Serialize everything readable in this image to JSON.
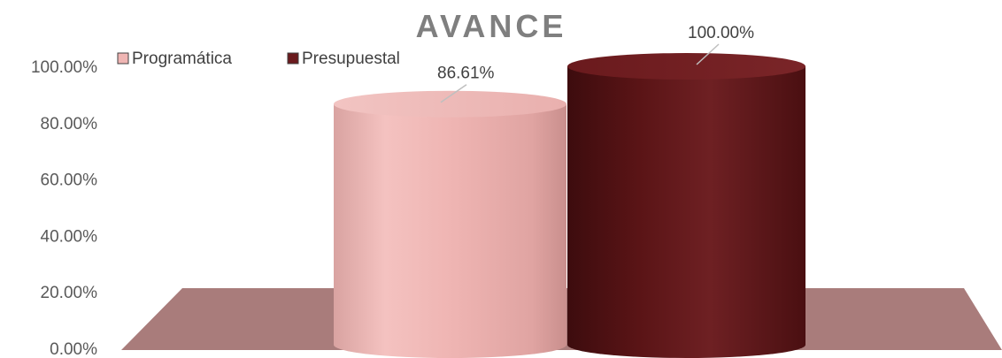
{
  "chart_data": {
    "type": "bar",
    "title": "AVANCE",
    "categories": [
      ""
    ],
    "series": [
      {
        "name": "Programática",
        "values": [
          86.61
        ],
        "label": "86.61%",
        "color": "#efb5b3"
      },
      {
        "name": "Presupuestal",
        "values": [
          100.0
        ],
        "label": "100.00%",
        "color": "#6a1a1d"
      }
    ],
    "ylim": [
      0,
      100
    ],
    "yticks": [
      "0.00%",
      "20.00%",
      "40.00%",
      "60.00%",
      "80.00%",
      "100.00%"
    ],
    "ytick_values": [
      0,
      20,
      40,
      60,
      80,
      100
    ],
    "xlabel": "",
    "ylabel": "",
    "grid": false,
    "legend_position": "top-left",
    "floor_color": "#a97c7b",
    "title_color": "#7f7f7f"
  }
}
